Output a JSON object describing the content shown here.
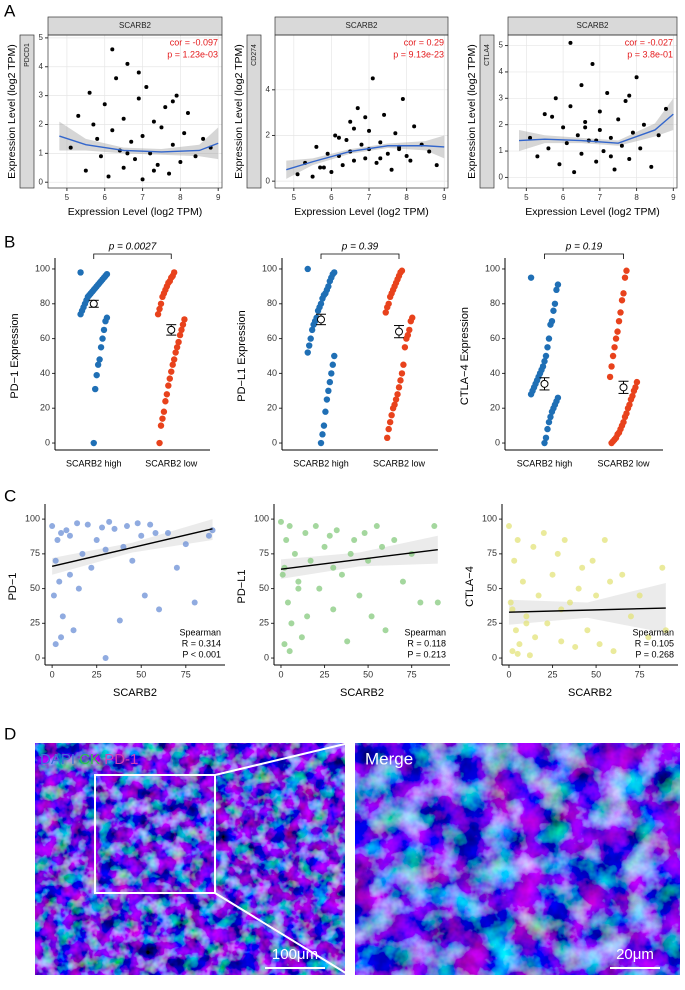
{
  "panel_labels": [
    "A",
    "B",
    "C",
    "D"
  ],
  "chart_data": [
    {
      "type": "scatter",
      "strip_top": "SCARB2",
      "strip_side": "PDCD1",
      "xlabel": "Expression Level (log2 TPM)",
      "ylabel": "Expression Level (log2 TPM)",
      "annotations": [
        "cor = -0.097",
        "p = 1.23e-03"
      ],
      "annotation_color": "#e41a1c",
      "annotation_corner": "top-right",
      "grid": true,
      "color": "#000000",
      "x": [
        5.1,
        5.3,
        5.5,
        5.6,
        5.8,
        5.9,
        6.0,
        6.1,
        6.2,
        6.3,
        6.4,
        6.5,
        6.5,
        6.6,
        6.7,
        6.8,
        6.9,
        7.0,
        7.0,
        7.1,
        7.2,
        7.3,
        7.4,
        7.5,
        7.6,
        7.7,
        7.8,
        7.9,
        8.0,
        8.1,
        8.2,
        8.4,
        8.6,
        8.8,
        6.2,
        6.9,
        7.3,
        5.7,
        6.6,
        7.8
      ],
      "values": [
        1.2,
        2.3,
        0.4,
        3.1,
        1.5,
        0.9,
        2.7,
        0.2,
        1.8,
        3.6,
        1.1,
        0.5,
        2.2,
        4.1,
        1.4,
        0.8,
        2.9,
        1.6,
        0.1,
        3.3,
        1.0,
        2.1,
        0.6,
        1.9,
        2.6,
        0.3,
        1.3,
        3.0,
        0.7,
        1.7,
        2.4,
        0.9,
        1.5,
        1.2,
        4.6,
        3.8,
        0.4,
        2.0,
        1.0,
        2.8
      ],
      "fit": {
        "color": "#3366cc",
        "band_color": "#999999",
        "x": [
          4.8,
          5.5,
          6.5,
          7.5,
          8.5,
          9.0
        ],
        "values": [
          1.6,
          1.3,
          1.1,
          1.05,
          1.1,
          1.35
        ],
        "lower": [
          1.1,
          1.1,
          1.0,
          0.95,
          0.9,
          0.8
        ],
        "upper": [
          2.1,
          1.5,
          1.2,
          1.15,
          1.3,
          1.9
        ]
      },
      "xlim": [
        4.5,
        9.1
      ],
      "ylim": [
        -0.2,
        5.1
      ],
      "xticks": [
        5,
        6,
        7,
        8,
        9
      ],
      "yticks": [
        0,
        1,
        2,
        3,
        4,
        5
      ]
    },
    {
      "type": "scatter",
      "strip_top": "SCARB2",
      "strip_side": "CD274",
      "xlabel": "Expression Level (log2 TPM)",
      "ylabel": "Expression Level (log2 TPM)",
      "annotations": [
        "cor = 0.29",
        "p = 9.13e-23"
      ],
      "annotation_color": "#e41a1c",
      "annotation_corner": "top-right",
      "grid": true,
      "color": "#000000",
      "x": [
        5.1,
        5.3,
        5.5,
        5.6,
        5.8,
        5.9,
        6.0,
        6.1,
        6.2,
        6.3,
        6.4,
        6.5,
        6.5,
        6.6,
        6.7,
        6.8,
        6.9,
        7.0,
        7.0,
        7.1,
        7.2,
        7.3,
        7.4,
        7.5,
        7.6,
        7.7,
        7.8,
        7.9,
        8.0,
        8.1,
        8.2,
        8.4,
        8.6,
        8.8,
        6.2,
        6.9,
        7.3,
        5.7,
        6.6,
        7.8
      ],
      "values": [
        0.3,
        0.8,
        0.2,
        1.5,
        0.6,
        1.2,
        0.4,
        2.0,
        1.1,
        0.7,
        1.8,
        2.6,
        1.3,
        0.9,
        3.2,
        1.6,
        1.0,
        2.2,
        1.4,
        4.5,
        0.8,
        1.7,
        2.9,
        1.2,
        0.5,
        2.1,
        1.5,
        3.6,
        1.1,
        0.9,
        2.4,
        1.6,
        1.3,
        0.7,
        1.9,
        2.8,
        1.0,
        0.6,
        2.3,
        1.4
      ],
      "fit": {
        "color": "#3366cc",
        "band_color": "#999999",
        "x": [
          4.8,
          5.5,
          6.5,
          7.5,
          8.5,
          9.0
        ],
        "values": [
          0.5,
          0.85,
          1.3,
          1.55,
          1.55,
          1.5
        ],
        "lower": [
          0.1,
          0.7,
          1.2,
          1.45,
          1.35,
          1.0
        ],
        "upper": [
          0.9,
          1.0,
          1.4,
          1.65,
          1.75,
          2.0
        ]
      },
      "xlim": [
        4.5,
        9.1
      ],
      "ylim": [
        -0.3,
        6.4
      ],
      "xticks": [
        5,
        6,
        7,
        8,
        9
      ],
      "yticks": [
        0,
        2,
        4
      ]
    },
    {
      "type": "scatter",
      "strip_top": "SCARB2",
      "strip_side": "CTLA4",
      "xlabel": "Expression Level (log2 TPM)",
      "ylabel": "Expression Level (log2 TPM)",
      "annotations": [
        "cor = -0.027",
        "p = 3.8e-01"
      ],
      "annotation_color": "#e41a1c",
      "annotation_corner": "top-right",
      "grid": true,
      "color": "#000000",
      "x": [
        5.1,
        5.3,
        5.5,
        5.6,
        5.8,
        5.9,
        6.0,
        6.1,
        6.2,
        6.3,
        6.4,
        6.5,
        6.5,
        6.6,
        6.7,
        6.8,
        6.9,
        7.0,
        7.0,
        7.1,
        7.2,
        7.3,
        7.4,
        7.5,
        7.6,
        7.7,
        7.8,
        7.9,
        8.0,
        8.1,
        8.2,
        8.4,
        8.6,
        8.8,
        6.2,
        6.9,
        7.3,
        5.7,
        6.6,
        7.8
      ],
      "values": [
        1.5,
        0.8,
        2.4,
        1.1,
        3.0,
        0.5,
        1.9,
        1.3,
        2.7,
        0.2,
        1.6,
        3.5,
        0.9,
        2.1,
        1.4,
        4.3,
        0.6,
        1.8,
        2.5,
        1.0,
        3.2,
        1.5,
        0.3,
        2.2,
        1.2,
        2.9,
        0.7,
        1.7,
        3.8,
        1.1,
        2.0,
        0.4,
        1.6,
        2.6,
        5.1,
        1.4,
        0.8,
        2.3,
        1.9,
        3.1
      ],
      "fit": {
        "color": "#3366cc",
        "band_color": "#999999",
        "x": [
          4.8,
          5.5,
          6.5,
          7.5,
          8.5,
          9.0
        ],
        "values": [
          1.4,
          1.45,
          1.4,
          1.3,
          1.8,
          2.4
        ],
        "lower": [
          1.0,
          1.3,
          1.3,
          1.2,
          1.55,
          1.8
        ],
        "upper": [
          1.8,
          1.6,
          1.5,
          1.4,
          2.05,
          3.0
        ]
      },
      "xlim": [
        4.5,
        9.1
      ],
      "ylim": [
        -0.4,
        5.4
      ],
      "xticks": [
        5,
        6,
        7,
        8,
        9
      ],
      "yticks": [
        0,
        1,
        2,
        3,
        4,
        5
      ]
    },
    {
      "type": "strip",
      "categories": [
        "SCARB2 high",
        "SCARB2 low"
      ],
      "ylabel": "PD−1 Expression",
      "annotations": [
        "p = 0.0027"
      ],
      "series": [
        {
          "color": "#1f6fb5",
          "values": [
            98,
            97,
            96,
            95,
            94,
            93,
            92,
            91,
            90,
            89,
            88,
            87,
            86,
            85,
            84,
            82,
            80,
            78,
            76,
            74,
            72,
            70,
            65,
            60,
            55,
            48,
            45,
            39,
            31,
            0
          ],
          "mean": 80,
          "se": 2
        },
        {
          "color": "#e8421c",
          "values": [
            98,
            96,
            95,
            93,
            92,
            90,
            88,
            86,
            84,
            80,
            77,
            74,
            71,
            68,
            65,
            62,
            58,
            55,
            52,
            48,
            45,
            41,
            37,
            33,
            28,
            24,
            18,
            14,
            10,
            0
          ],
          "mean": 65,
          "se": 3
        }
      ],
      "ylim": [
        -4,
        104
      ],
      "yticks": [
        0,
        20,
        40,
        60,
        80,
        100
      ]
    },
    {
      "type": "strip",
      "categories": [
        "SCARB2 high",
        "SCARB2 low"
      ],
      "ylabel": "PD−L1 Expression",
      "annotations": [
        "p = 0.39"
      ],
      "series": [
        {
          "color": "#1f6fb5",
          "values": [
            100,
            98,
            97,
            95,
            93,
            90,
            88,
            86,
            85,
            83,
            80,
            78,
            76,
            72,
            70,
            68,
            65,
            60,
            56,
            52,
            50,
            45,
            40,
            35,
            30,
            25,
            18,
            10,
            5,
            0
          ],
          "mean": 71,
          "se": 3
        },
        {
          "color": "#e8421c",
          "values": [
            99,
            98,
            96,
            94,
            92,
            90,
            88,
            86,
            84,
            80,
            78,
            75,
            72,
            70,
            65,
            62,
            60,
            55,
            45,
            40,
            36,
            32,
            28,
            25,
            22,
            20,
            16,
            12,
            8,
            3
          ],
          "mean": 64,
          "se": 3.5
        }
      ],
      "ylim": [
        -4,
        104
      ],
      "yticks": [
        0,
        20,
        40,
        60,
        80,
        100
      ]
    },
    {
      "type": "strip",
      "categories": [
        "SCARB2 high",
        "SCARB2 low"
      ],
      "ylabel": "CTLA−4 Expression",
      "annotations": [
        "p = 0.19"
      ],
      "series": [
        {
          "color": "#1f6fb5",
          "values": [
            95,
            91,
            88,
            80,
            76,
            70,
            68,
            60,
            55,
            50,
            47,
            44,
            42,
            40,
            38,
            36,
            34,
            32,
            30,
            28,
            26,
            24,
            22,
            20,
            18,
            15,
            12,
            8,
            3,
            0
          ],
          "mean": 34,
          "se": 3.5
        },
        {
          "color": "#e8421c",
          "values": [
            99,
            95,
            86,
            82,
            75,
            70,
            64,
            60,
            55,
            50,
            44,
            38,
            35,
            32,
            30,
            27,
            25,
            22,
            20,
            17,
            15,
            12,
            10,
            8,
            6,
            5,
            3,
            2,
            1,
            0
          ],
          "mean": 32,
          "se": 3.5
        }
      ],
      "ylim": [
        -4,
        104
      ],
      "yticks": [
        0,
        20,
        40,
        60,
        80,
        100
      ]
    },
    {
      "type": "scatter",
      "xlabel": "SCARB2",
      "ylabel": "PD−1",
      "annotations": [
        "Spearman",
        "R = 0.314",
        "P < 0.001"
      ],
      "annotation_color": "#000000",
      "annotation_corner": "bottom-right",
      "grid": false,
      "color": "#6b8fd6",
      "x": [
        0,
        1,
        2,
        3,
        4,
        5,
        6,
        8,
        10,
        12,
        14,
        15,
        17,
        20,
        22,
        25,
        28,
        30,
        32,
        35,
        38,
        40,
        42,
        45,
        48,
        50,
        52,
        55,
        58,
        60,
        65,
        70,
        75,
        80,
        88,
        90,
        2,
        5,
        10,
        30
      ],
      "values": [
        95,
        45,
        10,
        85,
        55,
        90,
        30,
        92,
        88,
        20,
        97,
        50,
        75,
        96,
        65,
        85,
        94,
        78,
        98,
        93,
        27,
        80,
        95,
        70,
        97,
        88,
        45,
        96,
        90,
        35,
        90,
        65,
        82,
        40,
        88,
        92,
        70,
        15,
        60,
        0
      ],
      "fit": {
        "color": "#000000",
        "band_color": "#cccccc",
        "x": [
          0,
          45,
          90
        ],
        "values": [
          66,
          79.5,
          93
        ],
        "lower": [
          60,
          76,
          85
        ],
        "upper": [
          72,
          83,
          100
        ]
      },
      "xlim": [
        -4,
        97
      ],
      "ylim": [
        -5,
        108
      ],
      "xticks": [
        0,
        25,
        50,
        75
      ],
      "yticks": [
        0,
        25,
        50,
        75,
        100
      ]
    },
    {
      "type": "scatter",
      "xlabel": "SCARB2",
      "ylabel": "PD−L1",
      "annotations": [
        "Spearman",
        "R = 0.118",
        "P = 0.213"
      ],
      "annotation_color": "#000000",
      "annotation_corner": "bottom-right",
      "grid": false,
      "color": "#86c97e",
      "x": [
        0,
        1,
        2,
        3,
        4,
        5,
        6,
        8,
        10,
        12,
        14,
        15,
        17,
        20,
        22,
        25,
        28,
        30,
        32,
        35,
        38,
        40,
        42,
        45,
        48,
        50,
        52,
        55,
        58,
        60,
        65,
        70,
        75,
        80,
        88,
        90,
        2,
        5,
        10,
        30
      ],
      "values": [
        98,
        60,
        10,
        85,
        40,
        95,
        25,
        75,
        55,
        15,
        90,
        30,
        70,
        95,
        50,
        80,
        88,
        65,
        92,
        60,
        12,
        75,
        85,
        45,
        90,
        70,
        30,
        95,
        80,
        20,
        85,
        55,
        75,
        40,
        95,
        40,
        65,
        5,
        50,
        35
      ],
      "fit": {
        "color": "#000000",
        "band_color": "#cccccc",
        "x": [
          0,
          45,
          90
        ],
        "values": [
          64,
          71,
          78
        ],
        "lower": [
          57,
          66,
          68
        ],
        "upper": [
          71,
          76,
          88
        ]
      },
      "xlim": [
        -4,
        97
      ],
      "ylim": [
        -5,
        108
      ],
      "xticks": [
        0,
        25,
        50,
        75
      ],
      "yticks": [
        0,
        25,
        50,
        75,
        100
      ]
    },
    {
      "type": "scatter",
      "xlabel": "SCARB2",
      "ylabel": "CTLA−4",
      "annotations": [
        "Spearman",
        "R = 0.105",
        "P = 0.268"
      ],
      "annotation_color": "#000000",
      "annotation_corner": "bottom-right",
      "grid": false,
      "color": "#e3e37a",
      "x": [
        0,
        1,
        2,
        3,
        4,
        5,
        6,
        8,
        10,
        12,
        14,
        15,
        17,
        20,
        22,
        25,
        28,
        30,
        32,
        35,
        38,
        40,
        42,
        45,
        48,
        50,
        52,
        55,
        58,
        60,
        65,
        70,
        75,
        80,
        88,
        90,
        2,
        5,
        10,
        30
      ],
      "values": [
        95,
        40,
        5,
        70,
        20,
        85,
        10,
        55,
        30,
        2,
        80,
        15,
        45,
        90,
        25,
        60,
        75,
        35,
        85,
        40,
        8,
        50,
        65,
        20,
        70,
        45,
        10,
        85,
        55,
        5,
        60,
        30,
        45,
        15,
        65,
        20,
        35,
        3,
        25,
        12
      ],
      "fit": {
        "color": "#000000",
        "band_color": "#cccccc",
        "x": [
          0,
          45,
          90
        ],
        "values": [
          33,
          34.5,
          36
        ],
        "lower": [
          24,
          29,
          18
        ],
        "upper": [
          42,
          40,
          54
        ]
      },
      "xlim": [
        -4,
        97
      ],
      "ylim": [
        -5,
        108
      ],
      "xticks": [
        0,
        25,
        50,
        75
      ],
      "yticks": [
        0,
        25,
        50,
        75,
        100
      ]
    }
  ],
  "images": {
    "left_channels": [
      "DAPI",
      "CK",
      "PD-1"
    ],
    "channel_colors": [
      "#3b6fd8",
      "#2fbf4a",
      "#d23fb8"
    ],
    "left_scale": "100μm",
    "right_title": "Merge",
    "right_scale": "20μm"
  }
}
